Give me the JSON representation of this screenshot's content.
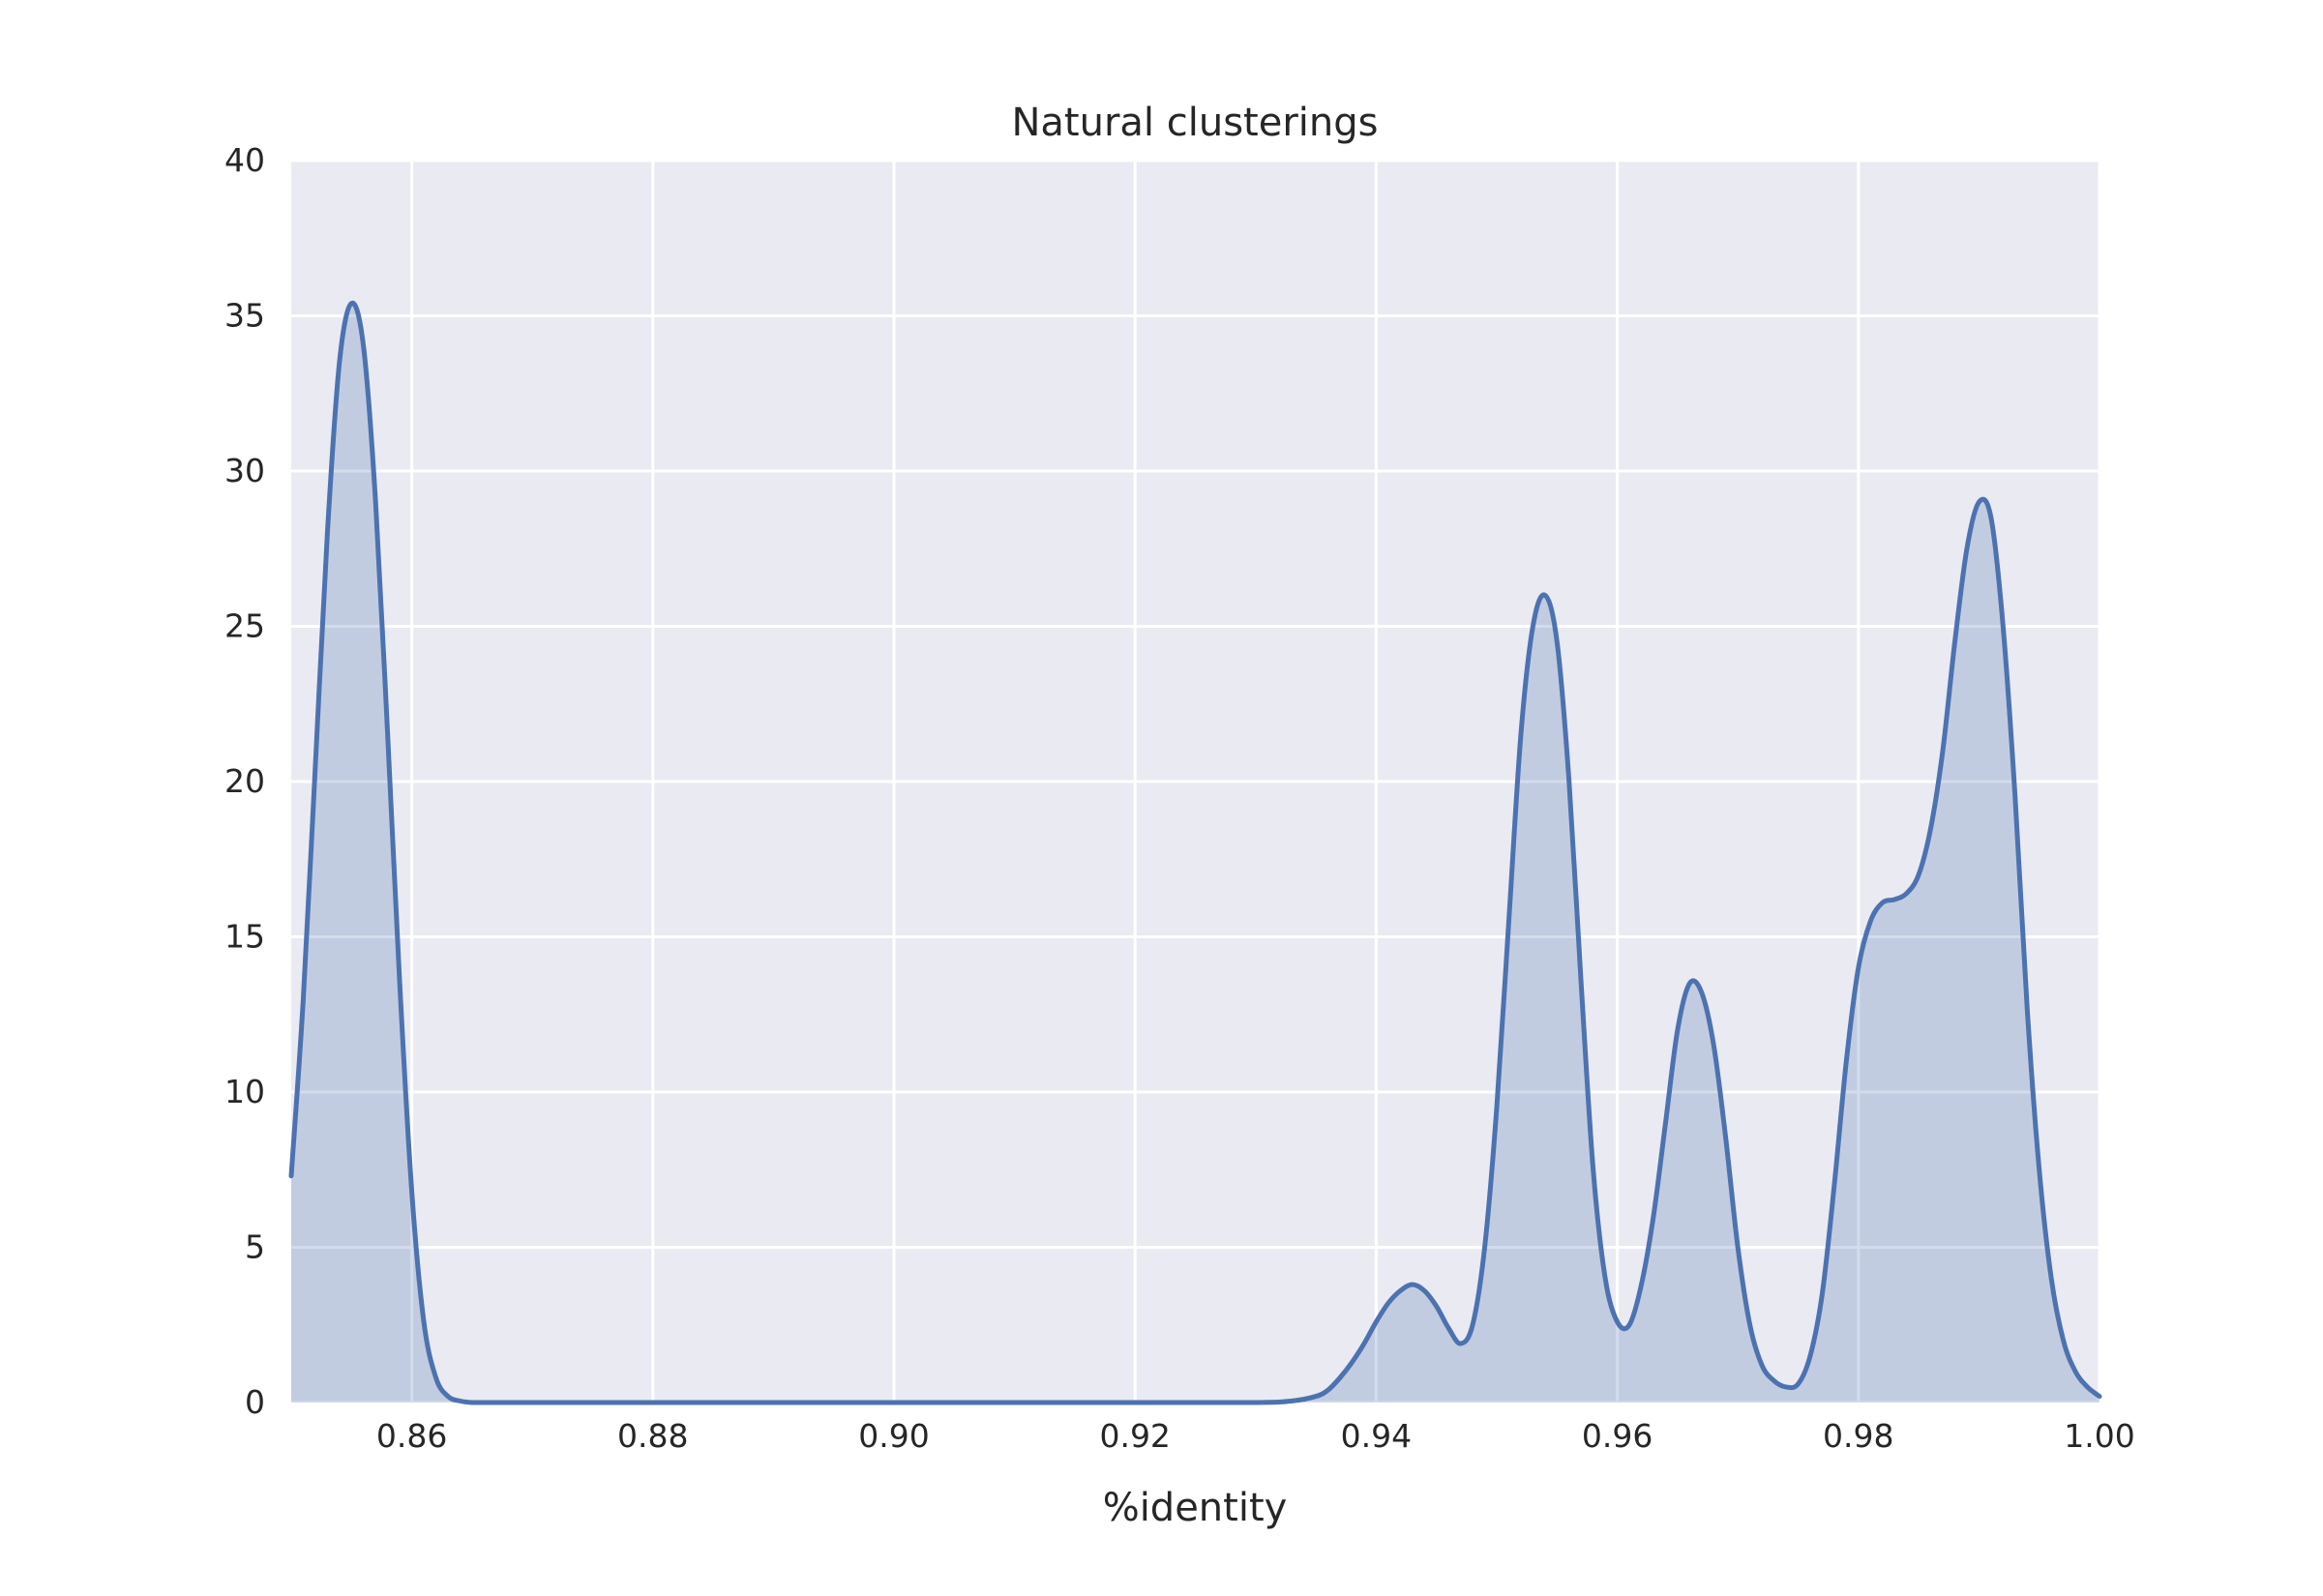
{
  "chart_data": {
    "type": "area",
    "title": "Natural clusterings",
    "xlabel": "%identity",
    "ylabel": "",
    "xlim": [
      0.85,
      1.0
    ],
    "ylim": [
      0,
      40
    ],
    "xticks": [
      "0.86",
      "0.88",
      "0.90",
      "0.92",
      "0.94",
      "0.96",
      "0.98",
      "1.00"
    ],
    "xtick_values": [
      0.86,
      0.88,
      0.9,
      0.92,
      0.94,
      0.96,
      0.98,
      1.0
    ],
    "yticks": [
      "0",
      "5",
      "10",
      "15",
      "20",
      "25",
      "30",
      "35",
      "40"
    ],
    "ytick_values": [
      0,
      5,
      10,
      15,
      20,
      25,
      30,
      35,
      40
    ],
    "grid": true,
    "background": "#EAEAF2",
    "line_color": "#4C72B0",
    "fill_color": "#4C72B0",
    "fill_opacity": 0.25,
    "series": [
      {
        "x": [
          0.85,
          0.851,
          0.852,
          0.853,
          0.854,
          0.855,
          0.856,
          0.857,
          0.858,
          0.859,
          0.86,
          0.861,
          0.862,
          0.863,
          0.864,
          0.865,
          0.866,
          0.867,
          0.868,
          0.87,
          0.88,
          0.89,
          0.9,
          0.91,
          0.92,
          0.93,
          0.933,
          0.935,
          0.936,
          0.937,
          0.938,
          0.939,
          0.94,
          0.941,
          0.942,
          0.943,
          0.944,
          0.945,
          0.946,
          0.947,
          0.948,
          0.949,
          0.95,
          0.951,
          0.952,
          0.953,
          0.954,
          0.955,
          0.956,
          0.957,
          0.958,
          0.959,
          0.96,
          0.961,
          0.962,
          0.963,
          0.964,
          0.965,
          0.966,
          0.967,
          0.968,
          0.969,
          0.97,
          0.971,
          0.972,
          0.973,
          0.974,
          0.975,
          0.976,
          0.977,
          0.978,
          0.979,
          0.98,
          0.981,
          0.982,
          0.983,
          0.984,
          0.985,
          0.986,
          0.987,
          0.988,
          0.989,
          0.99,
          0.991,
          0.992,
          0.993,
          0.994,
          0.995,
          0.996,
          0.997,
          0.998,
          0.999,
          1.0
        ],
        "y": [
          7.3,
          13.0,
          20.5,
          28.0,
          33.5,
          35.4,
          34.0,
          29.0,
          21.5,
          13.5,
          6.8,
          2.6,
          0.8,
          0.2,
          0.05,
          0.0,
          0.0,
          0.0,
          0.0,
          0.0,
          0.0,
          0.0,
          0.0,
          0.0,
          0.0,
          0.0,
          0.05,
          0.2,
          0.4,
          0.8,
          1.3,
          1.9,
          2.6,
          3.2,
          3.6,
          3.8,
          3.6,
          3.1,
          2.4,
          1.9,
          2.5,
          5.0,
          9.5,
          15.5,
          21.5,
          25.0,
          26.0,
          24.5,
          20.0,
          13.5,
          7.5,
          4.0,
          2.6,
          2.5,
          3.8,
          6.0,
          9.0,
          12.0,
          13.5,
          13.2,
          11.5,
          8.5,
          5.0,
          2.5,
          1.2,
          0.7,
          0.5,
          0.6,
          1.5,
          3.5,
          7.0,
          11.0,
          14.0,
          15.5,
          16.1,
          16.2,
          16.4,
          17.0,
          18.5,
          21.0,
          24.5,
          27.5,
          29.0,
          28.5,
          25.0,
          19.5,
          12.7,
          7.5,
          4.0,
          2.0,
          1.0,
          0.5,
          0.2
        ]
      }
    ]
  }
}
